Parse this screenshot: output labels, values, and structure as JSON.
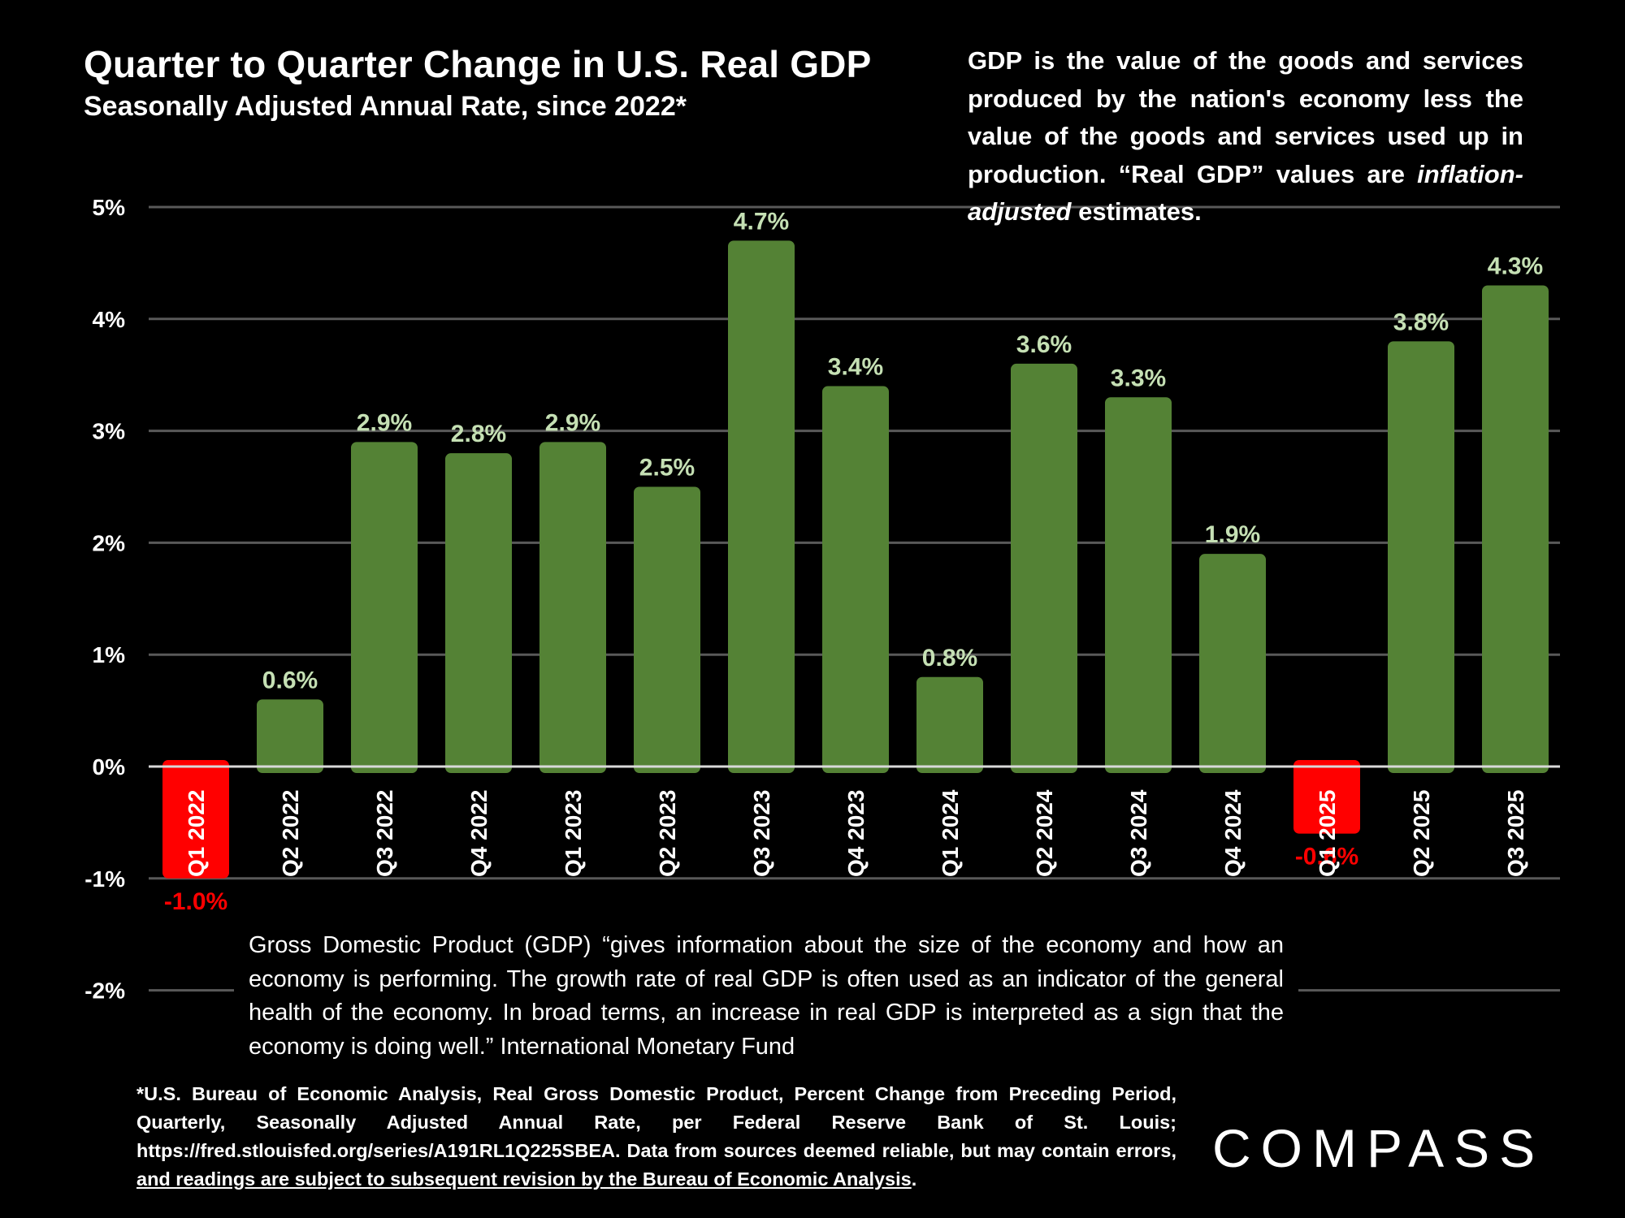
{
  "chart_data": {
    "type": "bar",
    "title": "Quarter to Quarter Change in U.S. Real GDP",
    "subtitle": "Seasonally Adjusted Annual Rate, since 2022*",
    "xlabel": "",
    "ylabel": "",
    "categories": [
      "Q1 2022",
      "Q2 2022",
      "Q3 2022",
      "Q4 2022",
      "Q1 2023",
      "Q2 2023",
      "Q3 2023",
      "Q4 2023",
      "Q1 2024",
      "Q2 2024",
      "Q3 2024",
      "Q4 2024",
      "Q1 2025",
      "Q2 2025",
      "Q3 2025"
    ],
    "values": [
      -1.0,
      0.6,
      2.9,
      2.8,
      2.9,
      2.5,
      4.7,
      3.4,
      0.8,
      3.6,
      3.3,
      1.9,
      -0.6,
      3.8,
      4.3
    ],
    "data_labels": [
      "-1.0%",
      "0.6%",
      "2.9%",
      "2.8%",
      "2.9%",
      "2.5%",
      "4.7%",
      "3.4%",
      "0.8%",
      "3.6%",
      "3.3%",
      "1.9%",
      "-0.6%",
      "3.8%",
      "4.3%"
    ],
    "ylim": [
      -2,
      5
    ],
    "yticks": [
      5,
      4,
      3,
      2,
      1,
      0,
      -1,
      -2
    ],
    "ytick_labels": [
      "5%",
      "4%",
      "3%",
      "2%",
      "1%",
      "0%",
      "-1%",
      "-2%"
    ],
    "grid": true,
    "legend": "none",
    "colors": {
      "positive_bar": "#548235",
      "negative_bar": "#ff0000",
      "positive_label": "#c5e0b4",
      "negative_label": "#ff0000",
      "gridline": "#595959",
      "zero_line": "#d9d9d9"
    }
  },
  "definition_note": {
    "text_before": "GDP is the value of the goods and services produced by the nation's economy less the value of the goods and services used up in production. “Real GDP” values are ",
    "emphasis": "inflation-adjusted",
    "text_after": " estimates."
  },
  "imf_quote": "Gross Domestic Product (GDP) “gives information about the size of the economy and how an economy is performing. The growth rate of real GDP is often used as an indicator of the general health of the economy. In broad terms, an increase in real GDP is interpreted as a sign that the economy is doing well.” International Monetary Fund",
  "footnote": {
    "text": "*U.S. Bureau of Economic Analysis, Real Gross Domestic Product, Percent Change from Preceding Period, Quarterly, Seasonally Adjusted Annual Rate, per Federal Reserve Bank of St. Louis; https://fred.stlouisfed.org/series/A191RL1Q225SBEA. Data from sources deemed reliable, but may contain errors, ",
    "underlined": "and readings are subject to subsequent revision by the Bureau of Economic Analysis",
    "end": "."
  },
  "brand": {
    "logo_text": "COMPASS"
  }
}
